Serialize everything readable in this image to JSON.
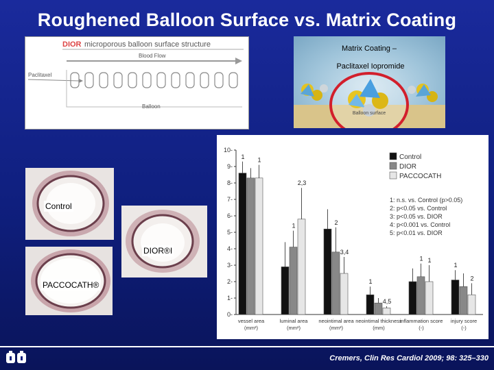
{
  "title": "Roughened Balloon Surface vs. Matrix Coating",
  "dior_panel": {
    "brand": "DIOR",
    "heading": "microporous balloon surface structure",
    "blood_flow": "Blood Flow",
    "paclitaxel": "Paclitaxel",
    "balloon": "Balloon"
  },
  "matrix_panel": {
    "line1": "Matrix Coating –",
    "line2": "Paclitaxel Iopromide",
    "surface": "Balloon surface"
  },
  "histology": {
    "control": "Control",
    "dior": "DIOR®I",
    "paccocath": "PACCOCATH®"
  },
  "chart_data": {
    "type": "bar",
    "ylim": [
      0,
      10
    ],
    "yticks": [
      "0",
      "1",
      "2",
      "3",
      "4",
      "5",
      "6",
      "7",
      "8",
      "9",
      "10"
    ],
    "categories": [
      "vessel area (mm²)",
      "luminal area (mm²)",
      "neointimal area (mm²)",
      "neointimal thickness (mm)",
      "inflammation score (-)",
      "injury score (-)"
    ],
    "series": [
      {
        "name": "Control",
        "color": "#111111",
        "values": [
          8.6,
          2.9,
          5.2,
          1.2,
          2.0,
          2.1
        ],
        "errors": [
          0.7,
          1.5,
          1.2,
          0.5,
          0.8,
          0.6
        ]
      },
      {
        "name": "DIOR",
        "color": "#888888",
        "values": [
          8.3,
          4.1,
          3.8,
          0.7,
          2.3,
          1.7
        ],
        "errors": [
          0.6,
          1.0,
          1.5,
          0.3,
          0.8,
          0.8
        ]
      },
      {
        "name": "PACCOCATH",
        "color": "#e6e6e6",
        "values": [
          8.3,
          5.8,
          2.5,
          0.4,
          2.0,
          1.2
        ],
        "errors": [
          0.8,
          1.9,
          1.0,
          0.1,
          1.0,
          0.7
        ]
      }
    ],
    "annotations": [
      {
        "cat": 0,
        "series": 0,
        "text": "1"
      },
      {
        "cat": 0,
        "series": 2,
        "text": "1"
      },
      {
        "cat": 1,
        "series": 2,
        "text": "2,3"
      },
      {
        "cat": 1,
        "series": 1,
        "text": "1"
      },
      {
        "cat": 2,
        "series": 1,
        "text": "2"
      },
      {
        "cat": 2,
        "series": 2,
        "text": "3,4"
      },
      {
        "cat": 3,
        "series": 0,
        "text": "1"
      },
      {
        "cat": 3,
        "series": 2,
        "text": "4,5"
      },
      {
        "cat": 4,
        "series": 1,
        "text": "1"
      },
      {
        "cat": 4,
        "series": 2,
        "text": "1"
      },
      {
        "cat": 5,
        "series": 0,
        "text": "1"
      },
      {
        "cat": 5,
        "series": 2,
        "text": "2"
      }
    ],
    "notes": [
      "1: n.s. vs. Control (p>0.05)",
      "2: p<0.05 vs. Control",
      "3: p<0.05 vs. DIOR",
      "4: p<0.001 vs. Control",
      "5: p<0.01 vs. DIOR"
    ]
  },
  "citation": "Cremers, Clin Res Cardiol 2009; 98: 325–330"
}
